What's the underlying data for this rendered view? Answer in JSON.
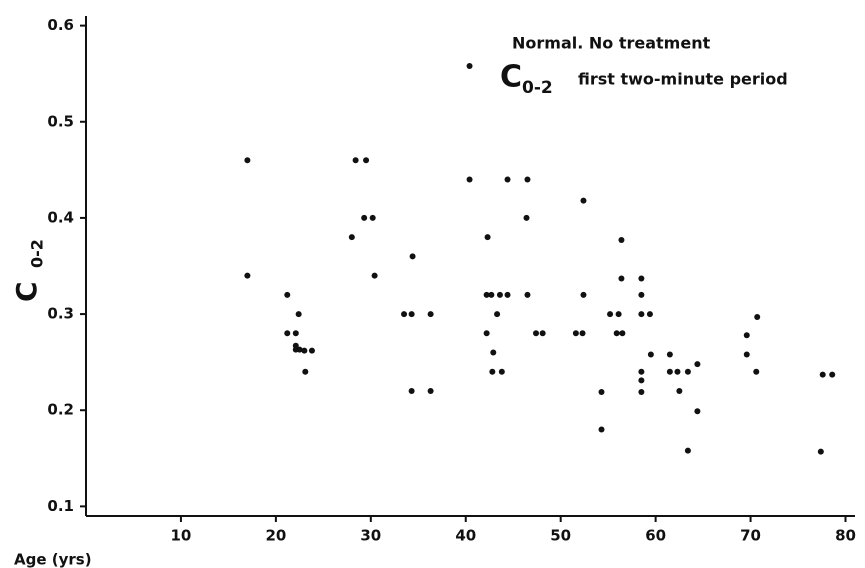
{
  "chart_data": {
    "type": "scatter",
    "title": "Normal. No treatment",
    "subtitle_symbol": "C",
    "subtitle_subscript": "0-2",
    "subtitle": "first two-minute period",
    "x_label": "Age (yrs)",
    "y_label": "C",
    "y_label_subscript": "0-2",
    "color": "#111111",
    "xlim": [
      0,
      81
    ],
    "xticks": [
      10,
      20,
      30,
      40,
      50,
      60,
      70,
      80
    ],
    "ylim": [
      0.09,
      0.61
    ],
    "yticks": [
      0.1,
      0.2,
      0.3,
      0.4,
      0.5,
      0.6
    ],
    "x": [
      17,
      17,
      21.2,
      21.2,
      22.1,
      22.4,
      22.1,
      22.1,
      22.5,
      23,
      23.8,
      23.1,
      28,
      28.4,
      29.5,
      29.3,
      30.2,
      30.4,
      33.5,
      34.3,
      34.4,
      34.3,
      36.3,
      36.3,
      40.4,
      40.4,
      42.2,
      42.3,
      42.2,
      42.7,
      42.9,
      43.3,
      42.8,
      43.6,
      43.8,
      44.4,
      44.4,
      46.5,
      46.4,
      46.5,
      47.4,
      48.1,
      51.6,
      52.3,
      52.4,
      52.4,
      54.3,
      54.3,
      55.2,
      56.1,
      55.9,
      56.5,
      56.4,
      56.4,
      58.5,
      58.5,
      58.5,
      58.5,
      58.5,
      58.5,
      59.4,
      59.5,
      61.5,
      61.5,
      62.3,
      62.5,
      63.4,
      63.4,
      64.4,
      64.4,
      69.6,
      69.6,
      70.6,
      70.7,
      77.4,
      77.6,
      78.6
    ],
    "values": [
      0.46,
      0.34,
      0.32,
      0.28,
      0.28,
      0.3,
      0.267,
      0.263,
      0.263,
      0.262,
      0.262,
      0.24,
      0.38,
      0.46,
      0.46,
      0.4,
      0.4,
      0.34,
      0.3,
      0.3,
      0.36,
      0.22,
      0.3,
      0.22,
      0.558,
      0.44,
      0.32,
      0.38,
      0.28,
      0.32,
      0.26,
      0.3,
      0.24,
      0.32,
      0.24,
      0.32,
      0.44,
      0.44,
      0.4,
      0.32,
      0.28,
      0.28,
      0.28,
      0.28,
      0.418,
      0.32,
      0.219,
      0.18,
      0.3,
      0.3,
      0.28,
      0.28,
      0.377,
      0.337,
      0.337,
      0.32,
      0.3,
      0.24,
      0.231,
      0.219,
      0.3,
      0.258,
      0.258,
      0.24,
      0.24,
      0.22,
      0.24,
      0.158,
      0.248,
      0.199,
      0.278,
      0.258,
      0.24,
      0.297,
      0.157,
      0.237,
      0.237
    ]
  }
}
